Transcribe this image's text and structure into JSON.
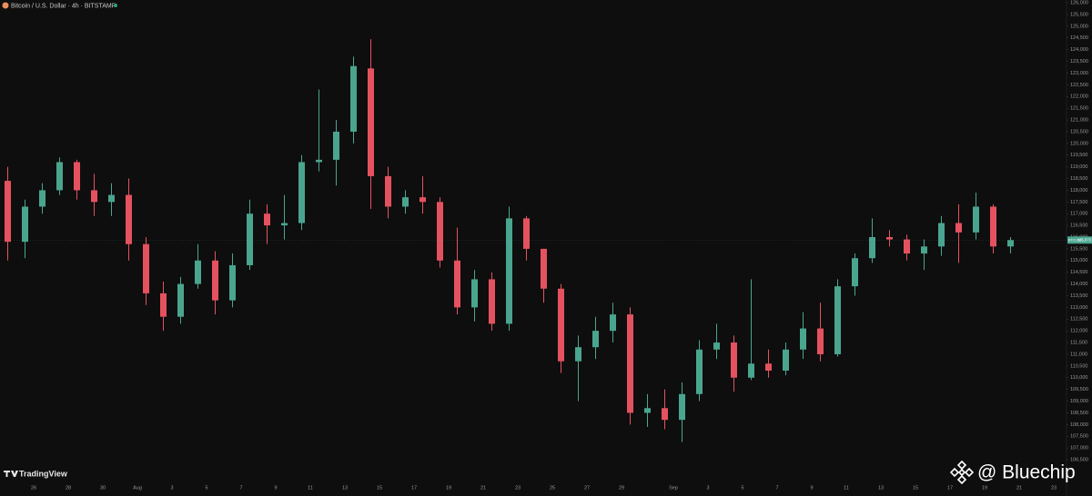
{
  "chart_data": {
    "type": "candlestick",
    "title": "Bitcoin / U.S. Dollar · 4h · BITSTAMP",
    "brand": "TradingView",
    "watermark": "@ Bluechip",
    "up_color": "#4aa58f",
    "down_color": "#e5525f",
    "categories": [
      null,
      null,
      "26",
      null,
      "28",
      null,
      "30",
      null,
      "Aug",
      null,
      "3",
      null,
      "5",
      null,
      "7",
      null,
      "9",
      null,
      "11",
      null,
      "13",
      null,
      "15",
      null,
      "17",
      null,
      "19",
      null,
      "21",
      null,
      "23",
      null,
      "25",
      null,
      "27",
      null,
      "29",
      null,
      null,
      "Sep",
      null,
      "3",
      null,
      "5",
      null,
      "7",
      null,
      "9",
      null,
      "11",
      null,
      "13",
      null,
      "15",
      null,
      "17",
      null,
      "19",
      null,
      "21",
      null,
      "23"
    ],
    "open": [
      118400,
      115800,
      117300,
      118000,
      119200,
      118000,
      117500,
      117800,
      115700,
      113600,
      112600,
      114000,
      115000,
      113300,
      114800,
      117000,
      116500,
      116600,
      119200,
      119300,
      120500,
      123200,
      118600,
      117300,
      117700,
      117500,
      115000,
      113000,
      114200,
      112300,
      116800,
      115500,
      113800,
      110700,
      111300,
      112000,
      112700,
      108500,
      108700,
      108200,
      109300,
      111200,
      111500,
      110000,
      110600,
      110300,
      111200,
      112100,
      111000,
      113900,
      115100,
      116000,
      115900,
      115300,
      115600,
      116600,
      116200,
      117300,
      115600,
      null,
      null,
      null
    ],
    "high": [
      119000,
      117600,
      118300,
      119400,
      119300,
      118700,
      118300,
      118500,
      116000,
      114100,
      114300,
      115700,
      115400,
      115300,
      117600,
      117400,
      117800,
      119500,
      122300,
      121000,
      123700,
      124450,
      119000,
      118000,
      118600,
      117700,
      116400,
      114600,
      114500,
      117300,
      116900,
      115500,
      114000,
      111800,
      112600,
      113200,
      113000,
      109300,
      109500,
      109800,
      111600,
      112300,
      111800,
      114200,
      111200,
      111500,
      112800,
      113200,
      114200,
      115300,
      116800,
      116300,
      116100,
      115900,
      116900,
      117400,
      117900,
      117400,
      116000,
      null,
      null,
      null
    ],
    "low": [
      115000,
      115100,
      117000,
      117800,
      117600,
      116900,
      116900,
      115000,
      113100,
      112000,
      112300,
      113800,
      112700,
      113000,
      114600,
      115700,
      115900,
      116300,
      118800,
      118200,
      120000,
      117200,
      116800,
      117000,
      117000,
      114700,
      112700,
      112400,
      112000,
      112000,
      115000,
      113200,
      110200,
      109000,
      110800,
      111500,
      108000,
      107900,
      107800,
      107250,
      109000,
      110800,
      109400,
      109900,
      110000,
      110100,
      110800,
      110700,
      110900,
      113500,
      114900,
      115600,
      115000,
      114600,
      115200,
      114900,
      115900,
      115300,
      115300,
      null,
      null,
      null
    ],
    "close": [
      115800,
      117300,
      118000,
      119200,
      118000,
      117500,
      117800,
      115700,
      113600,
      112600,
      114000,
      115000,
      113300,
      114800,
      117000,
      116500,
      116600,
      119200,
      119300,
      120500,
      123300,
      118600,
      117300,
      117700,
      117500,
      115000,
      113000,
      114200,
      112300,
      116800,
      115500,
      113800,
      110700,
      111300,
      112000,
      112700,
      108500,
      108700,
      108200,
      109300,
      111200,
      111500,
      110000,
      110600,
      110300,
      111200,
      112100,
      111000,
      113900,
      115100,
      116000,
      115900,
      115300,
      115600,
      116600,
      116200,
      117300,
      115600,
      115873,
      null,
      null,
      null
    ],
    "last_price": {
      "symbol": "BTCUSD",
      "value": 115873,
      "label": "115,873"
    },
    "ylim": [
      105570,
      126120
    ],
    "yticks": [
      {
        "value": 106500,
        "label": "106,500"
      },
      {
        "value": 107000,
        "label": "107,000"
      },
      {
        "value": 107500,
        "label": "107,500"
      },
      {
        "value": 108000,
        "label": "108,000"
      },
      {
        "value": 108500,
        "label": "108,500"
      },
      {
        "value": 109000,
        "label": "109,000"
      },
      {
        "value": 109500,
        "label": "109,500"
      },
      {
        "value": 110000,
        "label": "110,000"
      },
      {
        "value": 110500,
        "label": "110,500"
      },
      {
        "value": 111000,
        "label": "111,000"
      },
      {
        "value": 111500,
        "label": "111,500"
      },
      {
        "value": 112000,
        "label": "112,000"
      },
      {
        "value": 112500,
        "label": "112,500"
      },
      {
        "value": 113000,
        "label": "113,000"
      },
      {
        "value": 113500,
        "label": "113,500"
      },
      {
        "value": 114000,
        "label": "114,000"
      },
      {
        "value": 114500,
        "label": "114,500"
      },
      {
        "value": 115000,
        "label": "115,000"
      },
      {
        "value": 115500,
        "label": "115,500"
      },
      {
        "value": 116000,
        "label": "116,000"
      },
      {
        "value": 116500,
        "label": "116,500"
      },
      {
        "value": 117000,
        "label": "117,000"
      },
      {
        "value": 117500,
        "label": "117,500"
      },
      {
        "value": 118000,
        "label": "118,000"
      },
      {
        "value": 118500,
        "label": "118,500"
      },
      {
        "value": 119000,
        "label": "119,000"
      },
      {
        "value": 119500,
        "label": "119,500"
      },
      {
        "value": 120000,
        "label": "120,000"
      },
      {
        "value": 120500,
        "label": "120,500"
      },
      {
        "value": 121000,
        "label": "121,000"
      },
      {
        "value": 121500,
        "label": "121,500"
      },
      {
        "value": 122000,
        "label": "122,000"
      },
      {
        "value": 122500,
        "label": "122,500"
      },
      {
        "value": 123000,
        "label": "123,000"
      },
      {
        "value": 123500,
        "label": "123,500"
      },
      {
        "value": 124000,
        "label": "124,000"
      },
      {
        "value": 124500,
        "label": "124,500"
      },
      {
        "value": 125000,
        "label": "125,000"
      },
      {
        "value": 125500,
        "label": "125,500"
      },
      {
        "value": 126000,
        "label": "126,000"
      }
    ]
  }
}
